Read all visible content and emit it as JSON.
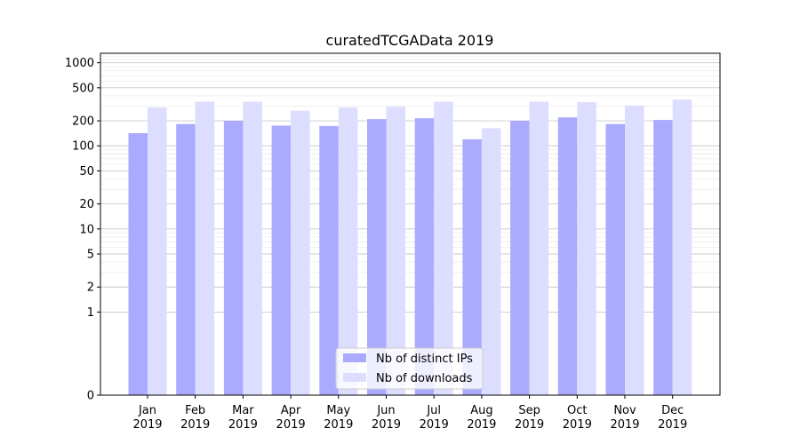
{
  "chart_data": {
    "type": "bar",
    "title": "curatedTCGAData 2019",
    "xlabel": "",
    "ylabel": "",
    "yscale": "symlog",
    "ylim": [
      0,
      1300
    ],
    "yticks": [
      0,
      1,
      2,
      5,
      10,
      20,
      50,
      100,
      200,
      500,
      1000
    ],
    "grid": true,
    "legend_position": "lower-center",
    "categories": [
      "Jan\n2019",
      "Feb\n2019",
      "Mar\n2019",
      "Apr\n2019",
      "May\n2019",
      "Jun\n2019",
      "Jul\n2019",
      "Aug\n2019",
      "Sep\n2019",
      "Oct\n2019",
      "Nov\n2019",
      "Dec\n2019"
    ],
    "series": [
      {
        "name": "Nb of distinct IPs",
        "color": "#aaaaff",
        "values": [
          142,
          183,
          200,
          175,
          173,
          210,
          215,
          120,
          200,
          220,
          183,
          205
        ]
      },
      {
        "name": "Nb of downloads",
        "color": "#ddddff",
        "values": [
          290,
          340,
          340,
          265,
          290,
          295,
          340,
          163,
          340,
          335,
          305,
          360
        ]
      }
    ]
  }
}
